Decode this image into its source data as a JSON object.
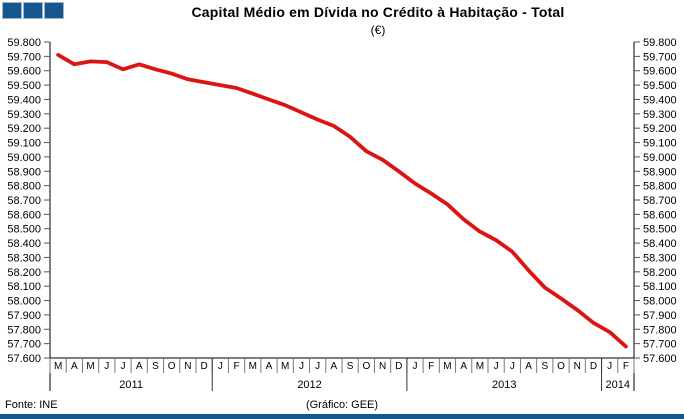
{
  "header": {
    "title": "Capital Médio em Dívida no Crédito à Habitação - Total",
    "subtitle": "(€)"
  },
  "footer": {
    "source": "Fonte: INE",
    "credit": "(Gráfico: GEE)"
  },
  "branding": {
    "square_count": 3,
    "square_color": "#15568E",
    "bottom_bar_color": "#15568E"
  },
  "chart_data": {
    "type": "line",
    "title": "Capital Médio em Dívida no Crédito à Habitação - Total",
    "units": "(€)",
    "grid": false,
    "legend": "none",
    "y_axis": {
      "min": 57600,
      "max": 59800,
      "tick_step": 100,
      "tick_labels": [
        "59.800",
        "59.700",
        "59.600",
        "59.500",
        "59.400",
        "59.300",
        "59.200",
        "59.100",
        "59.000",
        "58.900",
        "58.800",
        "58.700",
        "58.600",
        "58.500",
        "58.400",
        "58.300",
        "58.200",
        "58.100",
        "58.000",
        "57.900",
        "57.800",
        "57.700",
        "57.600"
      ]
    },
    "x_axis": {
      "month_labels": [
        "M",
        "A",
        "M",
        "J",
        "J",
        "A",
        "S",
        "O",
        "N",
        "D",
        "J",
        "F",
        "M",
        "A",
        "M",
        "J",
        "J",
        "A",
        "S",
        "O",
        "N",
        "D",
        "J",
        "F",
        "M",
        "A",
        "M",
        "J",
        "J",
        "A",
        "S",
        "O",
        "N",
        "D",
        "J",
        "F"
      ],
      "year_groups": [
        {
          "label": "2011",
          "months": 10
        },
        {
          "label": "2012",
          "months": 12
        },
        {
          "label": "2013",
          "months": 12
        },
        {
          "label": "2014",
          "months": 2
        }
      ]
    },
    "series": [
      {
        "color": "#DC1414",
        "values": [
          59710,
          59645,
          59665,
          59660,
          59610,
          59645,
          59610,
          59580,
          59540,
          59520,
          59500,
          59480,
          59440,
          59400,
          59360,
          59310,
          59260,
          59215,
          59140,
          59040,
          58980,
          58900,
          58815,
          58745,
          58670,
          58565,
          58480,
          58420,
          58340,
          58210,
          58090,
          58015,
          57935,
          57845,
          57780,
          57680
        ]
      }
    ]
  }
}
